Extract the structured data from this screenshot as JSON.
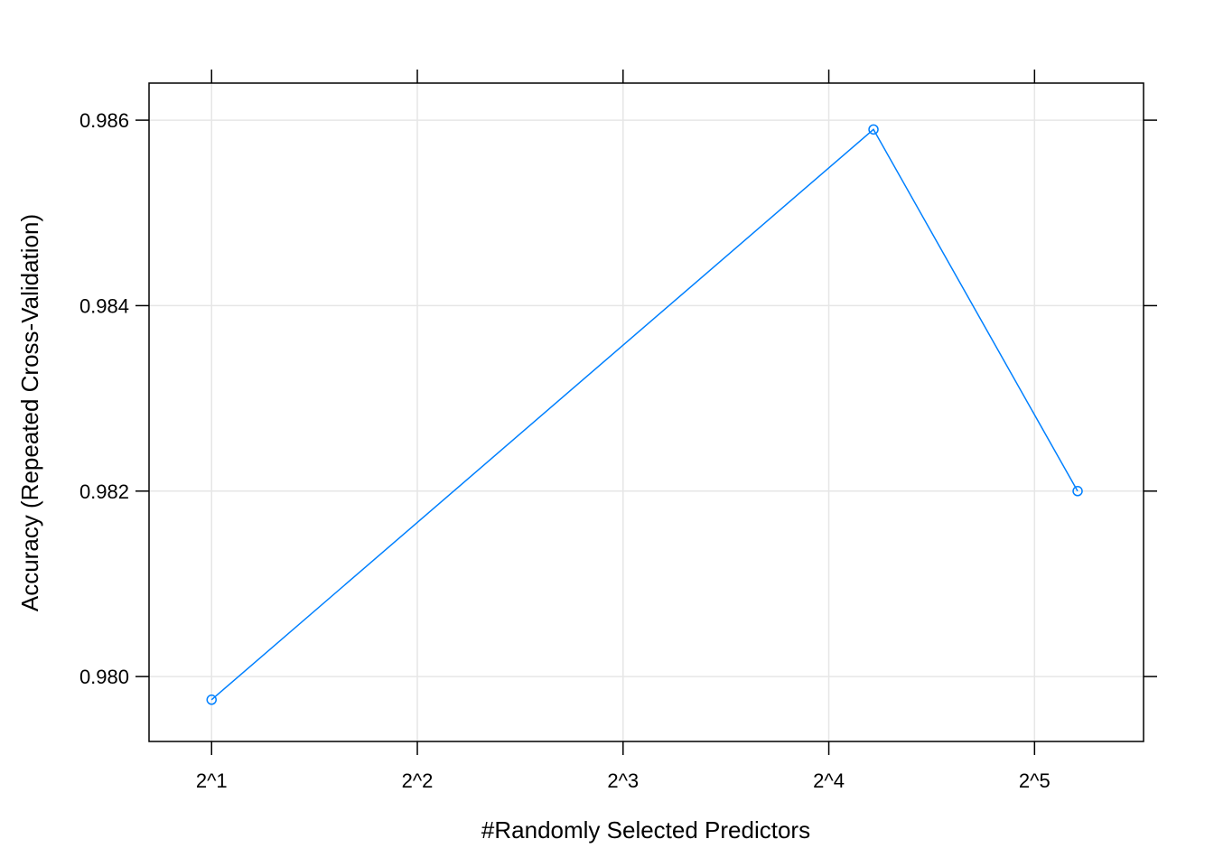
{
  "chart_data": {
    "type": "line",
    "title": "",
    "xlabel": "#Randomly Selected Predictors",
    "ylabel": "Accuracy (Repeated Cross-Validation)",
    "x_scale": "log2",
    "x_ticks": [
      2,
      4,
      8,
      16,
      32
    ],
    "x_tick_labels": [
      "2^1",
      "2^2",
      "2^3",
      "2^4",
      "2^5"
    ],
    "y_ticks": [
      0.98,
      0.982,
      0.984,
      0.986
    ],
    "y_tick_labels": [
      "0.980",
      "0.982",
      "0.984",
      "0.986"
    ],
    "xlim": [
      1.62,
      46.2
    ],
    "ylim": [
      0.9793,
      0.9864
    ],
    "grid": true,
    "legend": "none",
    "series": [
      {
        "color": "#0080ff",
        "marker": "open-circle",
        "x": [
          2,
          18.6,
          37
        ],
        "y": [
          0.97975,
          0.9859,
          0.982
        ]
      }
    ]
  }
}
